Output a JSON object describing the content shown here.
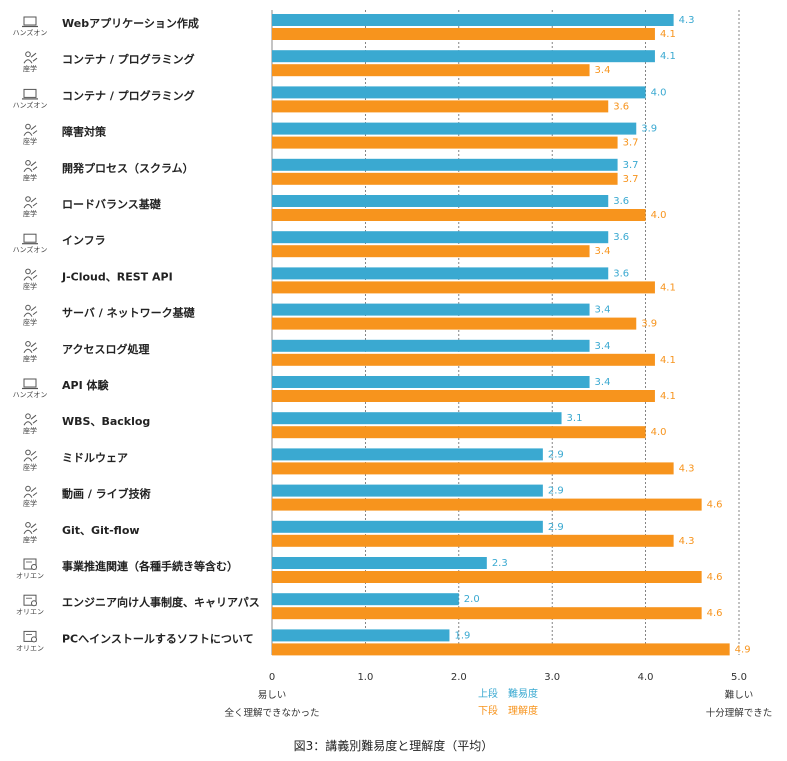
{
  "colors": {
    "difficulty": "#3aa9d1",
    "understanding": "#f7941d",
    "grid": "#666666",
    "axis": "#888888"
  },
  "caption": "図3：講義別難易度と理解度（平均）",
  "chart_data": {
    "type": "bar",
    "orientation": "horizontal",
    "xlim": [
      0,
      5
    ],
    "xticks": [
      "0",
      "1.0",
      "2.0",
      "3.0",
      "4.0",
      "5.0"
    ],
    "grid": true,
    "categories": [
      {
        "label": "Webアプリケーション作成",
        "type": "ハンズオン",
        "icon": "laptop-icon"
      },
      {
        "label": "コンテナ / プログラミング",
        "type": "座学",
        "icon": "lecture-icon"
      },
      {
        "label": "コンテナ / プログラミング",
        "type": "ハンズオン",
        "icon": "laptop-icon"
      },
      {
        "label": "障害対策",
        "type": "座学",
        "icon": "lecture-icon"
      },
      {
        "label": "開発プロセス（スクラム）",
        "type": "座学",
        "icon": "lecture-icon"
      },
      {
        "label": "ロードバランス基礎",
        "type": "座学",
        "icon": "lecture-icon"
      },
      {
        "label": "インフラ",
        "type": "ハンズオン",
        "icon": "laptop-icon"
      },
      {
        "label": "J-Cloud、REST API",
        "type": "座学",
        "icon": "lecture-icon"
      },
      {
        "label": "サーバ / ネットワーク基礎",
        "type": "座学",
        "icon": "lecture-icon"
      },
      {
        "label": "アクセスログ処理",
        "type": "座学",
        "icon": "lecture-icon"
      },
      {
        "label": "API 体験",
        "type": "ハンズオン",
        "icon": "laptop-icon"
      },
      {
        "label": "WBS、Backlog",
        "type": "座学",
        "icon": "lecture-icon"
      },
      {
        "label": "ミドルウェア",
        "type": "座学",
        "icon": "lecture-icon"
      },
      {
        "label": "動画 / ライブ技術",
        "type": "座学",
        "icon": "lecture-icon"
      },
      {
        "label": "Git、Git-flow",
        "type": "座学",
        "icon": "lecture-icon"
      },
      {
        "label": "事業推進関連（各種手続き等含む）",
        "type": "オリエン",
        "icon": "orientation-icon"
      },
      {
        "label": "エンジニア向け人事制度、キャリアパス",
        "type": "オリエン",
        "icon": "orientation-icon"
      },
      {
        "label": "PCへインストールするソフトについて",
        "type": "オリエン",
        "icon": "orientation-icon"
      }
    ],
    "series": [
      {
        "values": [
          4.3,
          4.1,
          4.0,
          3.9,
          3.7,
          3.6,
          3.6,
          3.6,
          3.4,
          3.4,
          3.4,
          3.1,
          2.9,
          2.9,
          2.9,
          2.3,
          2.0,
          1.9
        ]
      },
      {
        "values": [
          4.1,
          3.4,
          3.6,
          3.7,
          3.7,
          4.0,
          3.4,
          4.1,
          3.9,
          4.1,
          4.1,
          4.0,
          4.3,
          4.6,
          4.3,
          4.6,
          4.6,
          4.9
        ]
      }
    ],
    "legend": {
      "position": "bottom-center",
      "line1": "上段　難易度",
      "line2": "下段　理解度"
    },
    "x_left_annotation": [
      "易しい",
      "全く理解できなかった"
    ],
    "x_right_annotation": [
      "難しい",
      "十分理解できた"
    ]
  }
}
